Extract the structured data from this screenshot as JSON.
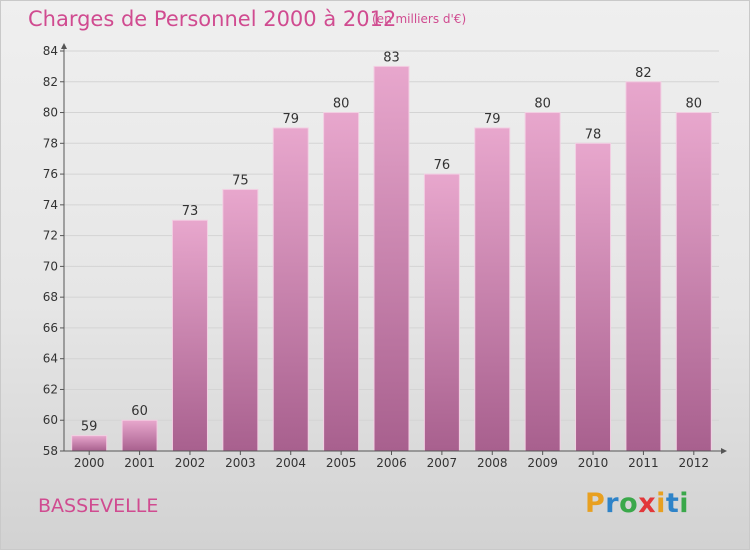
{
  "header": {
    "title": "Charges de Personnel 2000 à 2012",
    "subtitle": "(en milliers d'€)"
  },
  "footer": {
    "commune": "BASSEVELLE",
    "brand": {
      "letters": [
        "P",
        "r",
        "o",
        "x",
        "i",
        "t",
        "i"
      ],
      "colors": [
        "#e8a020",
        "#2e83c8",
        "#3aa84a",
        "#e2373a",
        "#e8a020",
        "#2e83c8",
        "#3aa84a"
      ]
    }
  },
  "colors": {
    "title": "#d04b90",
    "bar_top": "#e8a7cd",
    "bar_bottom": "#a8608e",
    "axis": "#555555",
    "grid": "#d4d4d4"
  },
  "chart_data": {
    "type": "bar",
    "categories": [
      "2000",
      "2001",
      "2002",
      "2003",
      "2004",
      "2005",
      "2006",
      "2007",
      "2008",
      "2009",
      "2010",
      "2011",
      "2012"
    ],
    "values": [
      59,
      60,
      73,
      75,
      79,
      80,
      83,
      76,
      79,
      80,
      78,
      82,
      80
    ],
    "title": "Charges de Personnel 2000 à 2012",
    "subtitle": "(en milliers d'€)",
    "xlabel": "",
    "ylabel": "",
    "ylim": [
      58,
      84
    ],
    "yticks": [
      58,
      60,
      62,
      64,
      66,
      68,
      70,
      72,
      74,
      76,
      78,
      80,
      82,
      84
    ],
    "grid": true,
    "data_labels": true
  }
}
